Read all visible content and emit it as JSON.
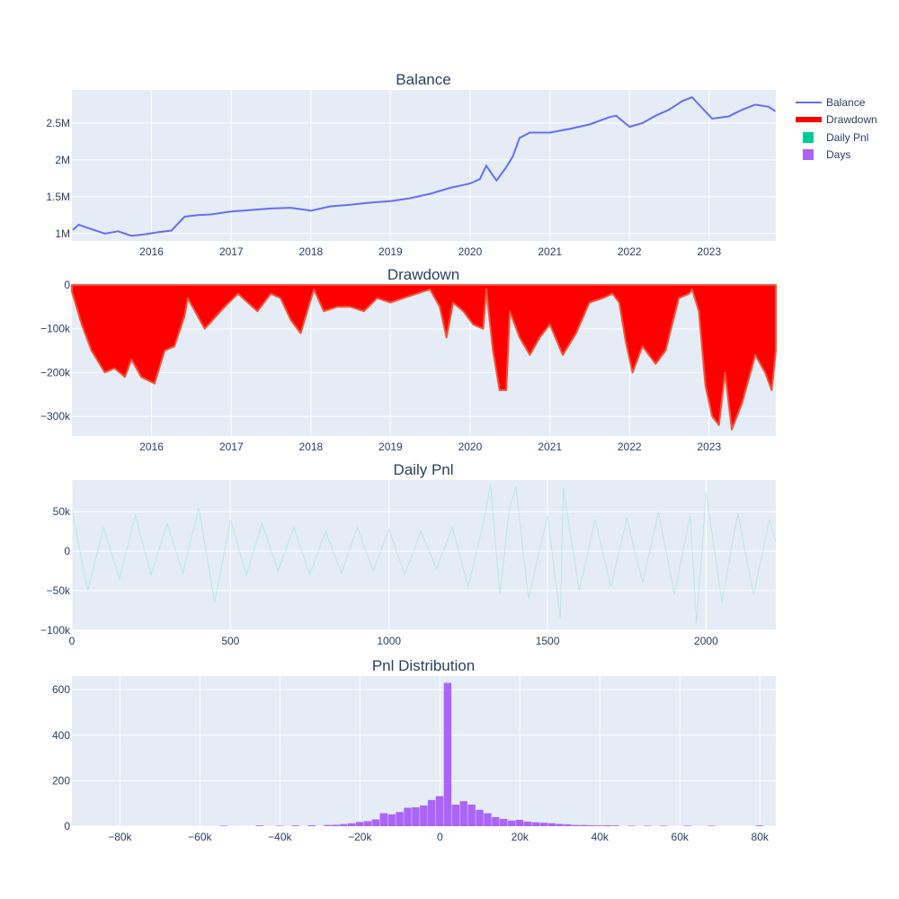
{
  "colors": {
    "plot_bg": "#e5ecf6",
    "grid": "#ffffff",
    "balance": "#636efa",
    "drawdown_fill": "#ff0000",
    "drawdown_line": "#ef553b",
    "daily_pnl": "#00cc96",
    "days": "#ab63fa",
    "text": "#2a3f5f"
  },
  "legend": {
    "balance": "Balance",
    "drawdown": "Drawdown",
    "daily_pnl": "Daily Pnl",
    "days": "Days"
  },
  "chart_data": [
    {
      "type": "line",
      "title": "Balance",
      "series": [
        {
          "name": "Balance",
          "x": [
            "2015-01-05",
            "2015-02-01",
            "2015-04-01",
            "2015-06-01",
            "2015-08-01",
            "2015-10-01",
            "2015-12-01",
            "2016-02-01",
            "2016-04-01",
            "2016-06-01",
            "2016-08-01",
            "2016-10-01",
            "2017-01-01",
            "2017-04-01",
            "2017-07-01",
            "2017-10-01",
            "2018-01-01",
            "2018-04-01",
            "2018-07-01",
            "2018-10-01",
            "2019-01-01",
            "2019-04-01",
            "2019-07-01",
            "2019-10-01",
            "2020-01-01",
            "2020-02-15",
            "2020-03-15",
            "2020-05-01",
            "2020-06-15",
            "2020-07-15",
            "2020-08-15",
            "2020-10-01",
            "2021-01-01",
            "2021-04-01",
            "2021-07-01",
            "2021-10-01",
            "2021-11-01",
            "2022-01-01",
            "2022-03-01",
            "2022-05-01",
            "2022-07-01",
            "2022-09-01",
            "2022-10-15",
            "2022-12-01",
            "2023-01-15",
            "2023-04-01",
            "2023-06-01",
            "2023-08-01",
            "2023-10-01",
            "2023-11-01"
          ],
          "values": [
            1050000,
            1120000,
            1060000,
            1000000,
            1030000,
            970000,
            990000,
            1020000,
            1040000,
            1230000,
            1250000,
            1260000,
            1300000,
            1320000,
            1340000,
            1350000,
            1310000,
            1370000,
            1390000,
            1420000,
            1440000,
            1480000,
            1540000,
            1620000,
            1680000,
            1740000,
            1920000,
            1720000,
            1900000,
            2050000,
            2300000,
            2370000,
            2370000,
            2420000,
            2480000,
            2580000,
            2600000,
            2450000,
            2500000,
            2600000,
            2680000,
            2800000,
            2850000,
            2700000,
            2560000,
            2590000,
            2680000,
            2750000,
            2720000,
            2660000
          ]
        }
      ],
      "xticks": [
        "2016",
        "2017",
        "2018",
        "2019",
        "2020",
        "2021",
        "2022",
        "2023"
      ],
      "yticks": [
        "1M",
        "1.5M",
        "2M",
        "2.5M"
      ],
      "xrange": [
        "2015-01-01",
        "2023-11-03"
      ],
      "yrange": [
        900000,
        2950000
      ]
    },
    {
      "type": "area",
      "title": "Drawdown",
      "series": [
        {
          "name": "Drawdown",
          "x": [
            "2015-01-01",
            "2015-02-15",
            "2015-04-01",
            "2015-06-01",
            "2015-07-15",
            "2015-09-01",
            "2015-10-01",
            "2015-11-15",
            "2016-01-15",
            "2016-03-01",
            "2016-04-15",
            "2016-06-01",
            "2016-06-15",
            "2016-09-01",
            "2016-12-01",
            "2017-02-01",
            "2017-05-01",
            "2017-07-01",
            "2017-08-15",
            "2017-10-01",
            "2017-11-15",
            "2017-12-15",
            "2018-01-15",
            "2018-03-01",
            "2018-05-01",
            "2018-07-01",
            "2018-09-01",
            "2018-11-01",
            "2019-01-01",
            "2019-03-01",
            "2019-05-01",
            "2019-07-01",
            "2019-08-15",
            "2019-09-15",
            "2019-10-15",
            "2019-12-01",
            "2020-01-15",
            "2020-03-01",
            "2020-03-15",
            "2020-04-15",
            "2020-05-15",
            "2020-06-15",
            "2020-07-01",
            "2020-08-15",
            "2020-10-01",
            "2020-11-15",
            "2021-01-01",
            "2021-03-01",
            "2021-05-01",
            "2021-07-01",
            "2021-09-01",
            "2021-10-15",
            "2021-11-15",
            "2021-12-15",
            "2022-01-15",
            "2022-03-01",
            "2022-05-01",
            "2022-06-15",
            "2022-08-15",
            "2022-10-01",
            "2022-10-15",
            "2022-11-15",
            "2022-12-15",
            "2023-01-15",
            "2023-02-15",
            "2023-03-15",
            "2023-04-15",
            "2023-06-01",
            "2023-08-01",
            "2023-09-15",
            "2023-10-15",
            "2023-11-03"
          ],
          "values": [
            -15000,
            -90000,
            -150000,
            -200000,
            -190000,
            -210000,
            -170000,
            -210000,
            -225000,
            -150000,
            -140000,
            -70000,
            -30000,
            -100000,
            -50000,
            -20000,
            -60000,
            -20000,
            -30000,
            -80000,
            -110000,
            -60000,
            -10000,
            -60000,
            -50000,
            -50000,
            -60000,
            -30000,
            -40000,
            -30000,
            -20000,
            -10000,
            -50000,
            -120000,
            -40000,
            -60000,
            -90000,
            -100000,
            -10000,
            -150000,
            -240000,
            -240000,
            -60000,
            -120000,
            -160000,
            -120000,
            -90000,
            -160000,
            -110000,
            -40000,
            -30000,
            -20000,
            -40000,
            -130000,
            -200000,
            -140000,
            -180000,
            -150000,
            -30000,
            -20000,
            -10000,
            -60000,
            -230000,
            -300000,
            -320000,
            -200000,
            -330000,
            -270000,
            -160000,
            -200000,
            -240000,
            -150000
          ]
        }
      ],
      "xticks": [
        "2016",
        "2017",
        "2018",
        "2019",
        "2020",
        "2021",
        "2022",
        "2023"
      ],
      "yticks": [
        "−300k",
        "−200k",
        "−100k",
        "0"
      ],
      "xrange": [
        "2015-01-01",
        "2023-11-03"
      ],
      "yrange": [
        -345000,
        0
      ]
    },
    {
      "type": "line",
      "title": "Daily Pnl",
      "series": [
        {
          "name": "Daily Pnl",
          "x": [
            0,
            50,
            100,
            150,
            200,
            250,
            300,
            350,
            400,
            450,
            500,
            550,
            600,
            650,
            700,
            750,
            800,
            850,
            900,
            950,
            1000,
            1050,
            1100,
            1150,
            1200,
            1250,
            1300,
            1320,
            1350,
            1380,
            1400,
            1440,
            1500,
            1540,
            1550,
            1600,
            1650,
            1700,
            1750,
            1800,
            1850,
            1900,
            1950,
            1970,
            2000,
            2050,
            2100,
            2150,
            2200,
            2220
          ],
          "values": [
            52000,
            -50000,
            30000,
            -35000,
            45000,
            -30000,
            35000,
            -28000,
            55000,
            -65000,
            40000,
            -30000,
            35000,
            -25000,
            30000,
            -30000,
            25000,
            -28000,
            30000,
            -25000,
            28000,
            -30000,
            25000,
            -22000,
            30000,
            -45000,
            40000,
            85000,
            -55000,
            55000,
            82000,
            -60000,
            45000,
            -85000,
            80000,
            -50000,
            40000,
            -45000,
            42000,
            -40000,
            50000,
            -55000,
            45000,
            -92000,
            75000,
            -65000,
            48000,
            -55000,
            40000,
            12000
          ]
        }
      ],
      "xticks": [
        "0",
        "500",
        "1000",
        "1500",
        "2000"
      ],
      "yticks": [
        "−100k",
        "−50k",
        "0",
        "50k"
      ],
      "xrange": [
        0,
        2220
      ],
      "yrange": [
        -100000,
        90000
      ]
    },
    {
      "type": "bar",
      "title": "Pnl Distribution",
      "series": [
        {
          "name": "Days",
          "x": [
            -54000,
            -45000,
            -40000,
            -36000,
            -32000,
            -28000,
            -26000,
            -24000,
            -22000,
            -20000,
            -18000,
            -16000,
            -14000,
            -12000,
            -10000,
            -8000,
            -6000,
            -4000,
            -2000,
            0,
            2000,
            4000,
            6000,
            8000,
            10000,
            12000,
            14000,
            16000,
            18000,
            20000,
            22000,
            24000,
            26000,
            28000,
            30000,
            32000,
            34000,
            36000,
            38000,
            40000,
            42000,
            44000,
            48000,
            52000,
            56000,
            62000,
            68000,
            80000
          ],
          "values": [
            2,
            3,
            2,
            3,
            4,
            5,
            6,
            9,
            13,
            18,
            22,
            30,
            57,
            52,
            62,
            81,
            83,
            91,
            115,
            132,
            630,
            95,
            110,
            95,
            72,
            57,
            40,
            32,
            25,
            28,
            20,
            17,
            15,
            13,
            10,
            8,
            5,
            5,
            4,
            3,
            4,
            3,
            2,
            2,
            2,
            2,
            2,
            3
          ]
        }
      ],
      "xticks": [
        "−80k",
        "−60k",
        "−40k",
        "−20k",
        "0",
        "20k",
        "40k",
        "60k",
        "80k"
      ],
      "yticks": [
        "0",
        "200",
        "400",
        "600"
      ],
      "xrange": [
        -92000,
        84000
      ],
      "yrange": [
        0,
        660
      ]
    }
  ]
}
